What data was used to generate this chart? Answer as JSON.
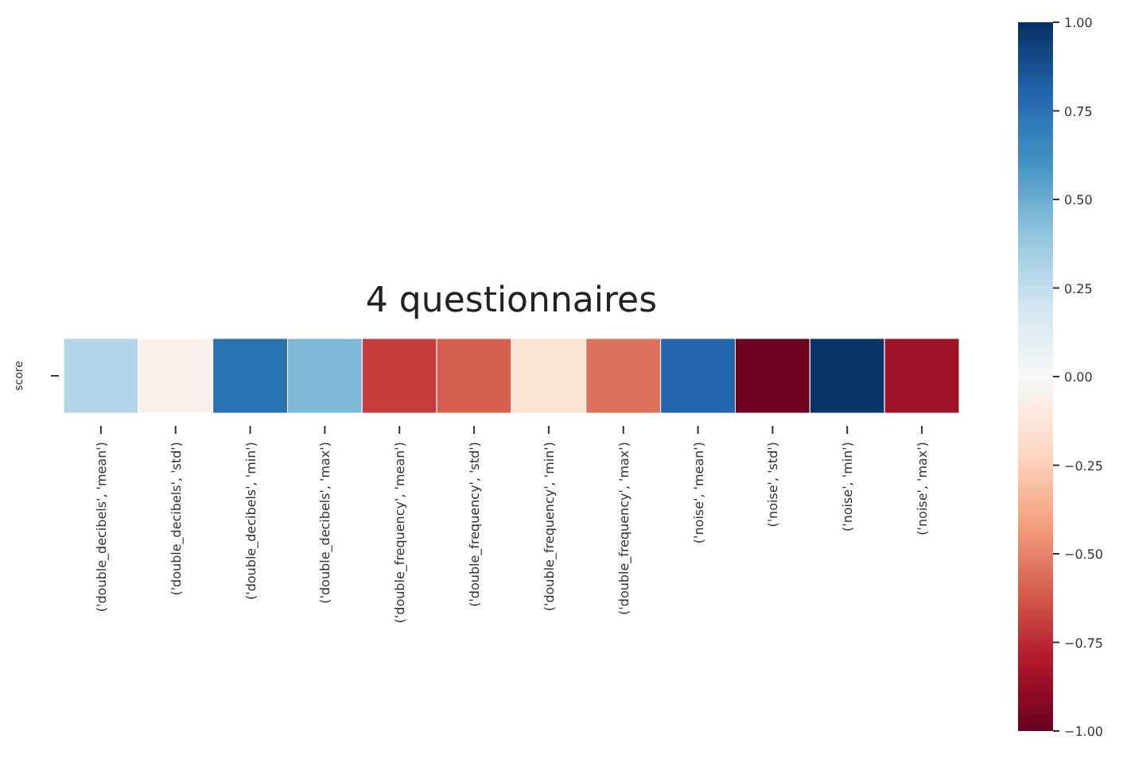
{
  "chart_data": {
    "type": "heatmap",
    "title": "4 questionnaires",
    "categories": [
      "('double_decibels', 'mean')",
      "('double_decibels', 'std')",
      "('double_decibels', 'min')",
      "('double_decibels', 'max')",
      "('double_frequency', 'mean')",
      "('double_frequency', 'std')",
      "('double_frequency', 'min')",
      "('double_frequency', 'max')",
      "('noise', 'mean')",
      "('noise', 'std')",
      "('noise', 'min')",
      "('noise', 'max')"
    ],
    "y_categories": [
      "score"
    ],
    "cells": [
      [
        0.3,
        -0.05,
        0.75,
        0.45,
        -0.7,
        -0.6,
        -0.15,
        -0.55,
        0.8,
        -0.98,
        0.98,
        -0.85
      ]
    ],
    "clim": [
      -1,
      1
    ],
    "cticks": [
      {
        "value": -1,
        "label": "−1.00"
      },
      {
        "value": -0.75,
        "label": "−0.75"
      },
      {
        "value": -0.5,
        "label": "−0.50"
      },
      {
        "value": -0.25,
        "label": "−0.25"
      },
      {
        "value": 0,
        "label": "0.00"
      },
      {
        "value": 0.25,
        "label": "0.25"
      },
      {
        "value": 0.5,
        "label": "0.50"
      },
      {
        "value": 0.75,
        "label": "0.75"
      },
      {
        "value": 1,
        "label": "1.00"
      }
    ]
  }
}
